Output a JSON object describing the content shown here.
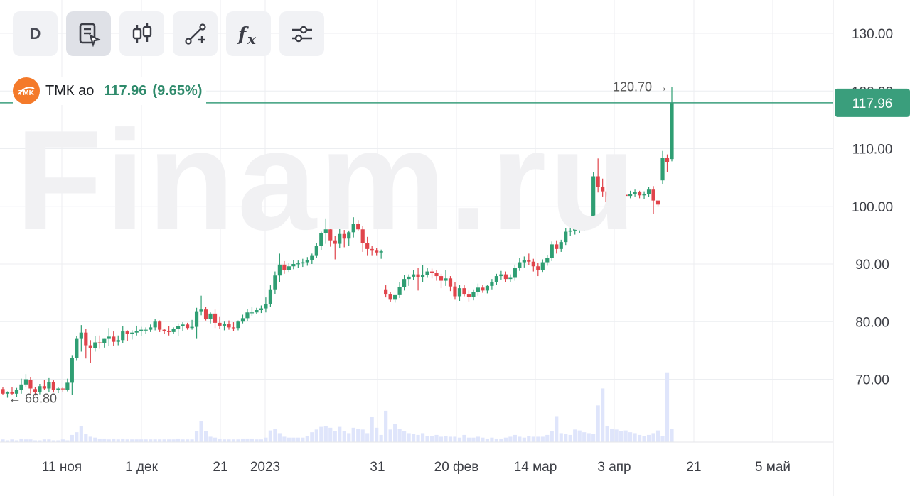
{
  "toolbar": {
    "items": [
      {
        "name": "interval-button",
        "label": "D"
      },
      {
        "name": "cursor-mode-icon",
        "label": ""
      },
      {
        "name": "candles-icon",
        "label": ""
      },
      {
        "name": "drawing-tool-icon",
        "label": ""
      },
      {
        "name": "indicators-icon",
        "label": "fx"
      },
      {
        "name": "settings-sliders-icon",
        "label": ""
      }
    ]
  },
  "watermark": "Finam.ru",
  "instrument": {
    "name": "ТМК ао",
    "price": "117.96",
    "change": "(9.65%)",
    "logo_text": "TMK",
    "price_label": "117.96",
    "max_label": "120.70 →",
    "min_label": "← 66.80"
  },
  "colors": {
    "up": "#2f9e73",
    "down": "#e0444b",
    "line": "#3a9e7c",
    "volume": "#dfe5fb",
    "grid": "#eceef1",
    "logo": "#f47a2a"
  },
  "chart_data": {
    "type": "candlestick",
    "y_ticks": [
      "130.00",
      "120.00",
      "110.00",
      "100.00",
      "90.00",
      "80.00",
      "70.00"
    ],
    "x_ticks": [
      "11 ноя",
      "1 дек",
      "21",
      "2023",
      "31",
      "20 фев",
      "14 мар",
      "3 апр",
      "21",
      "5 май"
    ],
    "ylim": [
      59,
      138
    ],
    "last_price": 117.96,
    "max": 120.7,
    "min": 66.8,
    "candles": [
      [
        68.3,
        68.6,
        67.3,
        67.5
      ],
      [
        67.5,
        67.9,
        66.8,
        67.8
      ],
      [
        67.8,
        68.6,
        67.3,
        67.5
      ],
      [
        67.5,
        68.5,
        66.9,
        68.2
      ],
      [
        68.2,
        70.1,
        67.5,
        69.1
      ],
      [
        69.1,
        70.9,
        68.6,
        70.0
      ],
      [
        69.9,
        70.4,
        67.5,
        68.4
      ],
      [
        68.3,
        68.6,
        67.2,
        67.8
      ],
      [
        67.8,
        69.2,
        67.4,
        68.8
      ],
      [
        68.8,
        69.9,
        68.2,
        68.4
      ],
      [
        68.4,
        70.2,
        67.8,
        69.5
      ],
      [
        69.5,
        69.8,
        67.7,
        68.1
      ],
      [
        68.1,
        68.7,
        67.6,
        68.4
      ],
      [
        68.4,
        68.7,
        67.8,
        68.3
      ],
      [
        68.1,
        70.1,
        67.9,
        69.4
      ],
      [
        69.4,
        74.2,
        67.3,
        73.7
      ],
      [
        73.7,
        77.5,
        73.2,
        77.0
      ],
      [
        77.0,
        79.4,
        74.8,
        78.1
      ],
      [
        78.1,
        78.7,
        73.6,
        75.9
      ],
      [
        75.9,
        76.8,
        72.8,
        75.4
      ],
      [
        75.4,
        77.5,
        74.8,
        76.4
      ],
      [
        76.4,
        77.6,
        75.3,
        76.3
      ],
      [
        76.3,
        77.0,
        75.5,
        77.0
      ],
      [
        77.0,
        78.9,
        75.8,
        77.4
      ],
      [
        77.4,
        78.3,
        75.8,
        76.5
      ],
      [
        76.5,
        77.6,
        75.9,
        76.8
      ],
      [
        76.8,
        79.2,
        76.3,
        78.3
      ],
      [
        78.3,
        78.5,
        76.6,
        77.9
      ],
      [
        77.9,
        78.5,
        76.9,
        78.1
      ],
      [
        78.1,
        79.3,
        77.6,
        78.4
      ],
      [
        78.4,
        79.1,
        77.5,
        78.6
      ],
      [
        78.6,
        79.0,
        77.9,
        78.6
      ],
      [
        78.6,
        79.5,
        78.2,
        79.0
      ],
      [
        79.0,
        80.5,
        78.5,
        80.0
      ],
      [
        80.0,
        80.2,
        78.2,
        78.6
      ],
      [
        78.6,
        78.8,
        77.9,
        78.4
      ],
      [
        78.4,
        79.2,
        77.6,
        78.2
      ],
      [
        78.2,
        79.0,
        77.9,
        78.7
      ],
      [
        78.7,
        79.7,
        77.5,
        79.2
      ],
      [
        79.2,
        79.9,
        78.4,
        79.5
      ],
      [
        79.5,
        79.8,
        78.6,
        78.9
      ],
      [
        78.9,
        80.3,
        78.6,
        79.1
      ],
      [
        79.1,
        82.4,
        77.0,
        81.8
      ],
      [
        81.8,
        84.5,
        81.1,
        82.1
      ],
      [
        82.1,
        82.6,
        80.2,
        80.5
      ],
      [
        80.5,
        81.6,
        79.7,
        81.4
      ],
      [
        81.4,
        82.1,
        78.9,
        79.8
      ],
      [
        79.8,
        80.8,
        78.7,
        79.3
      ],
      [
        79.3,
        80.0,
        78.5,
        79.6
      ],
      [
        79.6,
        80.2,
        78.6,
        79.0
      ],
      [
        79.0,
        79.9,
        78.4,
        78.9
      ],
      [
        78.9,
        80.2,
        78.5,
        80.0
      ],
      [
        80.0,
        81.2,
        79.7,
        80.6
      ],
      [
        80.6,
        82.2,
        80.1,
        81.6
      ],
      [
        81.6,
        82.5,
        81.0,
        81.6
      ],
      [
        81.6,
        82.4,
        81.3,
        82.0
      ],
      [
        82.0,
        82.8,
        81.5,
        82.3
      ],
      [
        82.3,
        84.2,
        81.6,
        83.1
      ],
      [
        83.1,
        86.3,
        82.5,
        85.6
      ],
      [
        85.6,
        88.7,
        84.8,
        88.0
      ],
      [
        88.0,
        91.8,
        86.8,
        89.9
      ],
      [
        89.9,
        90.5,
        88.3,
        89.0
      ],
      [
        89.0,
        90.2,
        88.5,
        89.6
      ],
      [
        89.6,
        90.7,
        89.1,
        90.0
      ],
      [
        90.0,
        90.6,
        89.3,
        90.1
      ],
      [
        90.1,
        90.9,
        89.5,
        90.3
      ],
      [
        90.3,
        91.2,
        89.7,
        90.7
      ],
      [
        90.7,
        91.8,
        90.0,
        91.4
      ],
      [
        91.4,
        93.6,
        91.0,
        93.1
      ],
      [
        93.1,
        95.6,
        92.4,
        95.3
      ],
      [
        95.3,
        97.9,
        93.5,
        96.0
      ],
      [
        96.0,
        97.3,
        93.0,
        94.1
      ],
      [
        94.1,
        94.9,
        90.8,
        93.5
      ],
      [
        93.5,
        96.5,
        92.7,
        95.2
      ],
      [
        95.2,
        95.9,
        92.9,
        94.4
      ],
      [
        94.4,
        95.8,
        93.1,
        95.5
      ],
      [
        95.5,
        98.1,
        94.6,
        97.0
      ],
      [
        97.0,
        97.6,
        95.8,
        96.0
      ],
      [
        96.0,
        96.6,
        92.1,
        93.6
      ],
      [
        93.6,
        94.7,
        91.4,
        92.6
      ],
      [
        92.6,
        93.2,
        91.4,
        92.3
      ],
      [
        92.3,
        92.8,
        91.4,
        92.0
      ],
      [
        92.0,
        92.5,
        90.9,
        92.2
      ],
      [
        85.6,
        86.3,
        84.2,
        84.7
      ],
      [
        84.7,
        85.2,
        83.4,
        83.8
      ],
      [
        83.8,
        84.6,
        83.3,
        84.6
      ],
      [
        84.6,
        86.9,
        84.1,
        86.0
      ],
      [
        86.0,
        88.1,
        85.4,
        87.4
      ],
      [
        87.4,
        88.2,
        86.2,
        87.8
      ],
      [
        87.8,
        88.9,
        87.2,
        88.2
      ],
      [
        88.2,
        89.3,
        85.4,
        87.7
      ],
      [
        87.7,
        89.8,
        86.8,
        88.1
      ],
      [
        88.1,
        89.3,
        87.6,
        88.7
      ],
      [
        88.7,
        89.2,
        87.5,
        88.4
      ],
      [
        88.4,
        89.0,
        87.1,
        87.9
      ],
      [
        87.9,
        88.3,
        85.8,
        87.1
      ],
      [
        87.1,
        88.9,
        86.2,
        87.5
      ],
      [
        87.5,
        87.9,
        85.3,
        86.1
      ],
      [
        86.1,
        86.9,
        83.8,
        84.4
      ],
      [
        84.4,
        86.4,
        83.6,
        85.8
      ],
      [
        85.8,
        86.3,
        84.4,
        84.7
      ],
      [
        84.7,
        85.4,
        83.5,
        84.3
      ],
      [
        84.3,
        85.6,
        83.7,
        85.1
      ],
      [
        85.1,
        86.6,
        84.5,
        85.9
      ],
      [
        85.9,
        86.4,
        85.0,
        85.4
      ],
      [
        85.4,
        86.3,
        84.9,
        86.2
      ],
      [
        86.2,
        87.4,
        85.6,
        86.9
      ],
      [
        86.9,
        88.3,
        86.4,
        87.9
      ],
      [
        87.9,
        88.8,
        87.3,
        88.2
      ],
      [
        88.2,
        88.7,
        86.9,
        87.4
      ],
      [
        87.4,
        88.2,
        86.8,
        87.6
      ],
      [
        87.6,
        89.9,
        87.1,
        89.3
      ],
      [
        89.3,
        91.0,
        88.8,
        90.3
      ],
      [
        90.3,
        91.3,
        89.4,
        90.7
      ],
      [
        90.7,
        91.8,
        89.8,
        90.4
      ],
      [
        90.4,
        90.9,
        88.7,
        89.6
      ],
      [
        89.6,
        90.2,
        87.9,
        89.0
      ],
      [
        89.0,
        90.8,
        88.5,
        90.3
      ],
      [
        90.3,
        91.6,
        89.7,
        91.1
      ],
      [
        91.1,
        93.9,
        90.5,
        93.4
      ],
      [
        93.4,
        94.1,
        91.8,
        92.6
      ],
      [
        92.6,
        94.2,
        92.1,
        93.8
      ],
      [
        93.8,
        96.2,
        93.3,
        95.6
      ],
      [
        95.6,
        96.6,
        94.9,
        95.8
      ],
      [
        95.8,
        96.7,
        95.1,
        96.1
      ],
      [
        96.1,
        96.9,
        95.4,
        96.4
      ],
      [
        96.4,
        97.2,
        95.7,
        96.8
      ],
      [
        96.8,
        97.6,
        96.1,
        97.3
      ],
      [
        97.3,
        105.9,
        96.8,
        105.2
      ],
      [
        105.2,
        108.3,
        102.4,
        103.4
      ],
      [
        103.4,
        104.8,
        101.7,
        102.6
      ],
      [
        102.6,
        104.3,
        100.1,
        100.7
      ],
      [
        100.7,
        102.1,
        98.7,
        100.2
      ],
      [
        100.2,
        101.9,
        99.6,
        101.5
      ],
      [
        101.5,
        102.7,
        100.9,
        102.0
      ],
      [
        102.0,
        104.2,
        101.2,
        101.8
      ],
      [
        101.8,
        102.7,
        101.4,
        102.1
      ],
      [
        102.1,
        102.9,
        101.7,
        102.5
      ],
      [
        102.5,
        102.7,
        101.4,
        101.9
      ],
      [
        101.9,
        102.6,
        101.2,
        102.1
      ],
      [
        102.1,
        103.4,
        101.6,
        102.9
      ],
      [
        102.9,
        103.5,
        98.7,
        101.0
      ],
      [
        101.0,
        100.5,
        99.9,
        100.3
      ],
      [
        104.5,
        109.6,
        103.9,
        108.4
      ],
      [
        108.4,
        109.0,
        105.9,
        107.6
      ],
      [
        108.2,
        120.7,
        107.8,
        117.96
      ]
    ],
    "volume": [
      3,
      2,
      3,
      2,
      4,
      3,
      3,
      2,
      2,
      3,
      3,
      2,
      2,
      3,
      2,
      8,
      11,
      18,
      9,
      6,
      5,
      4,
      4,
      3,
      4,
      3,
      4,
      3,
      3,
      3,
      3,
      3,
      3,
      3,
      3,
      3,
      3,
      3,
      4,
      3,
      3,
      3,
      12,
      23,
      12,
      6,
      5,
      4,
      3,
      3,
      3,
      3,
      4,
      4,
      4,
      3,
      3,
      5,
      13,
      15,
      10,
      6,
      5,
      5,
      5,
      5,
      7,
      11,
      14,
      17,
      18,
      16,
      12,
      17,
      12,
      10,
      16,
      15,
      14,
      10,
      28,
      16,
      8,
      35,
      14,
      20,
      15,
      12,
      10,
      9,
      8,
      10,
      7,
      7,
      8,
      6,
      7,
      6,
      6,
      5,
      8,
      5,
      5,
      6,
      5,
      4,
      5,
      4,
      4,
      5,
      6,
      8,
      6,
      5,
      7,
      6,
      6,
      6,
      8,
      12,
      29,
      10,
      9,
      8,
      14,
      13,
      11,
      10,
      9,
      41,
      60,
      18,
      15,
      14,
      12,
      13,
      11,
      10,
      8,
      7,
      8,
      10,
      13,
      7,
      78,
      15,
      100
    ]
  }
}
